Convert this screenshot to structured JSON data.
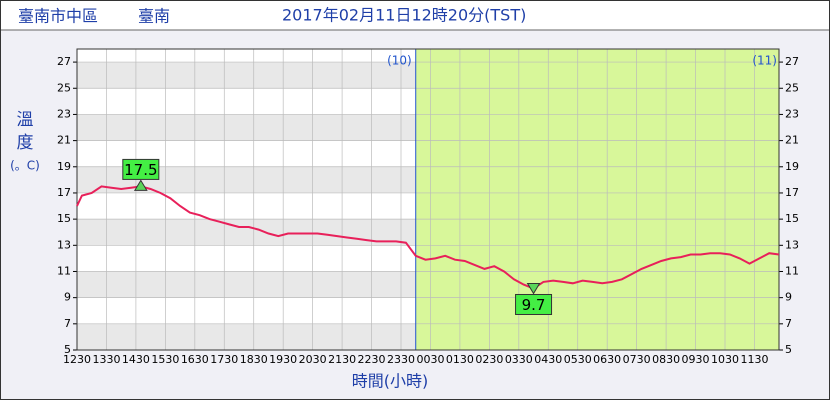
{
  "chart_data": {
    "type": "line",
    "station": "臺南市中區",
    "city": "臺南",
    "title": "2017年02月11日12時20分(TST)",
    "ylabel_chars": [
      "溫",
      "度",
      "(。C)"
    ],
    "xlabel": "時間(小時)",
    "day_labels": [
      "(10)",
      "(11)"
    ],
    "day_boundary": 690,
    "xlim": [
      0,
      1430
    ],
    "ylim": [
      5,
      28
    ],
    "yticks": [
      5,
      7,
      9,
      11,
      13,
      15,
      17,
      19,
      21,
      23,
      25,
      27
    ],
    "xticks": [
      {
        "value": 0,
        "label": "1230"
      },
      {
        "value": 60,
        "label": "1330"
      },
      {
        "value": 120,
        "label": "1430"
      },
      {
        "value": 180,
        "label": "1530"
      },
      {
        "value": 240,
        "label": "1630"
      },
      {
        "value": 300,
        "label": "1730"
      },
      {
        "value": 360,
        "label": "1830"
      },
      {
        "value": 420,
        "label": "1930"
      },
      {
        "value": 480,
        "label": "2030"
      },
      {
        "value": 540,
        "label": "2130"
      },
      {
        "value": 600,
        "label": "2230"
      },
      {
        "value": 660,
        "label": "2330"
      },
      {
        "value": 720,
        "label": "0030"
      },
      {
        "value": 780,
        "label": "0130"
      },
      {
        "value": 840,
        "label": "0230"
      },
      {
        "value": 900,
        "label": "0330"
      },
      {
        "value": 960,
        "label": "0430"
      },
      {
        "value": 1020,
        "label": "0530"
      },
      {
        "value": 1080,
        "label": "0630"
      },
      {
        "value": 1140,
        "label": "0730"
      },
      {
        "value": 1200,
        "label": "0830"
      },
      {
        "value": 1260,
        "label": "0930"
      },
      {
        "value": 1320,
        "label": "1030"
      },
      {
        "value": 1380,
        "label": "1130"
      }
    ],
    "grid": true,
    "x": [
      0,
      10,
      30,
      50,
      70,
      90,
      110,
      130,
      150,
      170,
      190,
      210,
      230,
      250,
      270,
      290,
      310,
      330,
      350,
      370,
      390,
      410,
      430,
      450,
      470,
      490,
      510,
      530,
      550,
      570,
      590,
      610,
      630,
      650,
      670,
      690,
      710,
      730,
      750,
      770,
      790,
      810,
      830,
      850,
      870,
      890,
      910,
      930,
      950,
      970,
      990,
      1010,
      1030,
      1050,
      1070,
      1090,
      1110,
      1130,
      1150,
      1170,
      1190,
      1210,
      1230,
      1250,
      1270,
      1290,
      1310,
      1330,
      1350,
      1370,
      1390,
      1410,
      1430
    ],
    "series": [
      {
        "name": "溫度",
        "color": "#e8205a",
        "values": [
          16.0,
          16.8,
          17.0,
          17.5,
          17.4,
          17.3,
          17.4,
          17.5,
          17.3,
          17.0,
          16.6,
          16.0,
          15.5,
          15.3,
          15.0,
          14.8,
          14.6,
          14.4,
          14.4,
          14.2,
          13.9,
          13.7,
          13.9,
          13.9,
          13.9,
          13.9,
          13.8,
          13.7,
          13.6,
          13.5,
          13.4,
          13.3,
          13.3,
          13.3,
          13.2,
          12.2,
          11.9,
          12.0,
          12.2,
          11.9,
          11.8,
          11.5,
          11.2,
          11.4,
          11.0,
          10.4,
          10.0,
          9.7,
          10.2,
          10.3,
          10.2,
          10.1,
          10.3,
          10.2,
          10.1,
          10.2,
          10.4,
          10.8,
          11.2,
          11.5,
          11.8,
          12.0,
          12.1,
          12.3,
          12.3,
          12.4,
          12.4,
          12.3,
          12.0,
          11.6,
          12.0,
          12.4,
          12.3
        ]
      }
    ],
    "annotations": [
      {
        "x": 130,
        "value": 17.5,
        "kind": "max"
      },
      {
        "x": 930,
        "value": 9.7,
        "kind": "min"
      }
    ]
  }
}
